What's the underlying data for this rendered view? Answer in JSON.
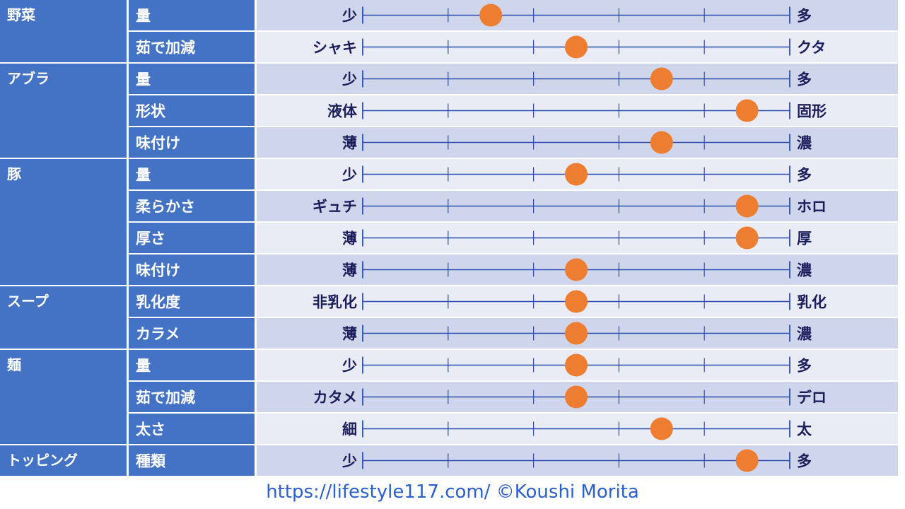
{
  "colors": {
    "category_bg": "#4472c4",
    "row_band_dark": "#cfd5ea",
    "row_band_light": "#e9ebf5",
    "axis_line": "#2b4fb0",
    "marker": "#ed7d31",
    "end_label": "#1a1f5c",
    "footer": "#2b5fcf"
  },
  "chart_data": {
    "type": "scatter",
    "scale": {
      "min": 0,
      "max": 1,
      "ticks": [
        0,
        0.2,
        0.4,
        0.6,
        0.8,
        1.0
      ]
    },
    "groups": [
      {
        "category": "野菜",
        "rows": [
          {
            "label": "量",
            "left": "少",
            "right": "多",
            "value": 0.3
          },
          {
            "label": "茹で加減",
            "left": "シャキ",
            "right": "クタ",
            "value": 0.5
          }
        ]
      },
      {
        "category": "アブラ",
        "rows": [
          {
            "label": "量",
            "left": "少",
            "right": "多",
            "value": 0.7
          },
          {
            "label": "形状",
            "left": "液体",
            "right": "固形",
            "value": 0.9
          },
          {
            "label": "味付け",
            "left": "薄",
            "right": "濃",
            "value": 0.7
          }
        ]
      },
      {
        "category": "豚",
        "rows": [
          {
            "label": "量",
            "left": "少",
            "right": "多",
            "value": 0.5
          },
          {
            "label": "柔らかさ",
            "left": "ギュチ",
            "right": "ホロ",
            "value": 0.9
          },
          {
            "label": "厚さ",
            "left": "薄",
            "right": "厚",
            "value": 0.9
          },
          {
            "label": "味付け",
            "left": "薄",
            "right": "濃",
            "value": 0.5
          }
        ]
      },
      {
        "category": "スープ",
        "rows": [
          {
            "label": "乳化度",
            "left": "非乳化",
            "right": "乳化",
            "value": 0.5
          },
          {
            "label": "カラメ",
            "left": "薄",
            "right": "濃",
            "value": 0.5
          }
        ]
      },
      {
        "category": "麺",
        "rows": [
          {
            "label": "量",
            "left": "少",
            "right": "多",
            "value": 0.5
          },
          {
            "label": "茹で加減",
            "left": "カタメ",
            "right": "デロ",
            "value": 0.5
          },
          {
            "label": "太さ",
            "left": "細",
            "right": "太",
            "value": 0.7
          }
        ]
      },
      {
        "category": "トッピング",
        "rows": [
          {
            "label": "種類",
            "left": "少",
            "right": "多",
            "value": 0.9
          }
        ]
      }
    ]
  },
  "footer": {
    "text": "https://lifestyle117.com/   ©Koushi Morita"
  }
}
